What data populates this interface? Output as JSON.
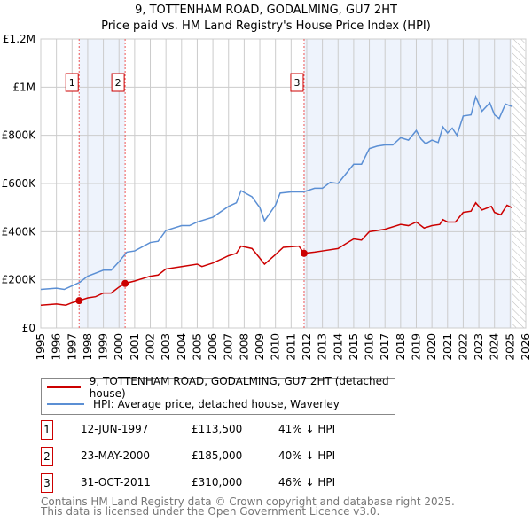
{
  "title": "9, TOTTENHAM ROAD, GODALMING, GU7 2HT",
  "subtitle": "Price paid vs. HM Land Registry's House Price Index (HPI)",
  "chart_data": {
    "type": "line",
    "title": "9, TOTTENHAM ROAD, GODALMING, GU7 2HT — Price paid vs. HM Land Registry's House Price Index (HPI)",
    "xlim": [
      1995,
      2026
    ],
    "ylim": [
      0,
      1200000
    ],
    "x_ticks": [
      "1995",
      "1996",
      "1997",
      "1998",
      "1999",
      "2000",
      "2001",
      "2002",
      "2003",
      "2004",
      "2005",
      "2006",
      "2007",
      "2008",
      "2009",
      "2010",
      "2011",
      "2012",
      "2013",
      "2014",
      "2015",
      "2016",
      "2017",
      "2018",
      "2019",
      "2020",
      "2021",
      "2022",
      "2023",
      "2024",
      "2025",
      "2026"
    ],
    "y_ticks": [
      {
        "v": 0,
        "label": "£0"
      },
      {
        "v": 200000,
        "label": "£200K"
      },
      {
        "v": 400000,
        "label": "£400K"
      },
      {
        "v": 600000,
        "label": "£600K"
      },
      {
        "v": 800000,
        "label": "£800K"
      },
      {
        "v": 1000000,
        "label": "£1M"
      },
      {
        "v": 1200000,
        "label": "£1.2M"
      }
    ],
    "grid": true,
    "series": [
      {
        "name": "9, TOTTENHAM ROAD, GODALMING, GU7 2HT (detached house)",
        "color": "#cc0000",
        "x": [
          1995,
          1996,
          1996.6,
          1997,
          1997.45,
          1998,
          1998.5,
          1999,
          1999.5,
          2000,
          2000.39,
          2001,
          2002,
          2002.5,
          2003,
          2004,
          2005,
          2005.3,
          2006,
          2007,
          2007.5,
          2007.8,
          2008.5,
          2009,
          2009.3,
          2010,
          2010.5,
          2011.5,
          2011.83,
          2012.5,
          2013,
          2014,
          2014.5,
          2015,
          2015.5,
          2016,
          2016.5,
          2017,
          2018,
          2018.5,
          2019,
          2019.5,
          2020,
          2020.5,
          2020.7,
          2021,
          2021.5,
          2022,
          2022.5,
          2022.8,
          2023.2,
          2023.8,
          2024,
          2024.4,
          2024.8,
          2025.1
        ],
        "y": [
          95000,
          100000,
          95000,
          105000,
          113500,
          125000,
          130000,
          145000,
          145000,
          170000,
          185000,
          195000,
          215000,
          220000,
          245000,
          255000,
          265000,
          255000,
          270000,
          300000,
          310000,
          340000,
          330000,
          290000,
          265000,
          305000,
          335000,
          340000,
          310000,
          315000,
          320000,
          330000,
          350000,
          370000,
          365000,
          400000,
          405000,
          410000,
          430000,
          425000,
          440000,
          415000,
          425000,
          430000,
          450000,
          440000,
          440000,
          480000,
          485000,
          520000,
          490000,
          505000,
          480000,
          470000,
          510000,
          500000
        ]
      },
      {
        "name": "HPI: Average price, detached house, Waverley",
        "color": "#5b8fd4",
        "x": [
          1995,
          1996,
          1996.5,
          1997,
          1997.5,
          1998,
          1999,
          1999.5,
          2000,
          2000.5,
          2001,
          2002,
          2002.5,
          2003,
          2004,
          2004.5,
          2005,
          2006,
          2007,
          2007.5,
          2007.8,
          2008.5,
          2009,
          2009.3,
          2010,
          2010.3,
          2011,
          2011.8,
          2012.5,
          2013,
          2013.5,
          2014,
          2014.5,
          2015,
          2015.5,
          2016,
          2016.5,
          2017,
          2017.5,
          2018,
          2018.5,
          2019,
          2019.3,
          2019.6,
          2020,
          2020.4,
          2020.7,
          2021,
          2021.3,
          2021.6,
          2022,
          2022.5,
          2022.8,
          2023.2,
          2023.7,
          2024,
          2024.3,
          2024.7,
          2025.1
        ],
        "y": [
          160000,
          165000,
          160000,
          175000,
          190000,
          215000,
          240000,
          240000,
          275000,
          315000,
          320000,
          355000,
          360000,
          405000,
          425000,
          425000,
          440000,
          460000,
          505000,
          520000,
          570000,
          545000,
          500000,
          445000,
          510000,
          560000,
          565000,
          565000,
          580000,
          580000,
          605000,
          600000,
          640000,
          680000,
          680000,
          745000,
          755000,
          760000,
          760000,
          790000,
          780000,
          820000,
          785000,
          765000,
          780000,
          770000,
          835000,
          810000,
          830000,
          800000,
          880000,
          885000,
          960000,
          900000,
          935000,
          885000,
          870000,
          930000,
          920000
        ]
      }
    ],
    "sales": [
      {
        "id": "1",
        "date": "12-JUN-1997",
        "price": "£113,500",
        "hpi": "41% ↓ HPI",
        "x": 1997.45,
        "y": 113500
      },
      {
        "id": "2",
        "date": "23-MAY-2000",
        "price": "£185,000",
        "hpi": "40% ↓ HPI",
        "x": 2000.39,
        "y": 185000
      },
      {
        "id": "3",
        "date": "31-OCT-2011",
        "price": "£310,000",
        "hpi": "46% ↓ HPI",
        "x": 2011.83,
        "y": 310000
      }
    ],
    "shaded": [
      [
        1997.45,
        2000.39
      ],
      [
        2011.83,
        2025.1
      ]
    ],
    "forecast_hatch": [
      2025.1,
      2026
    ],
    "legend": "bottom"
  },
  "legend": {
    "red": "9, TOTTENHAM ROAD, GODALMING, GU7 2HT (detached house)",
    "blue": "HPI: Average price, detached house, Waverley"
  },
  "footer": {
    "line1": "Contains HM Land Registry data © Crown copyright and database right 2025.",
    "line2": "This data is licensed under the Open Government Licence v3.0."
  }
}
